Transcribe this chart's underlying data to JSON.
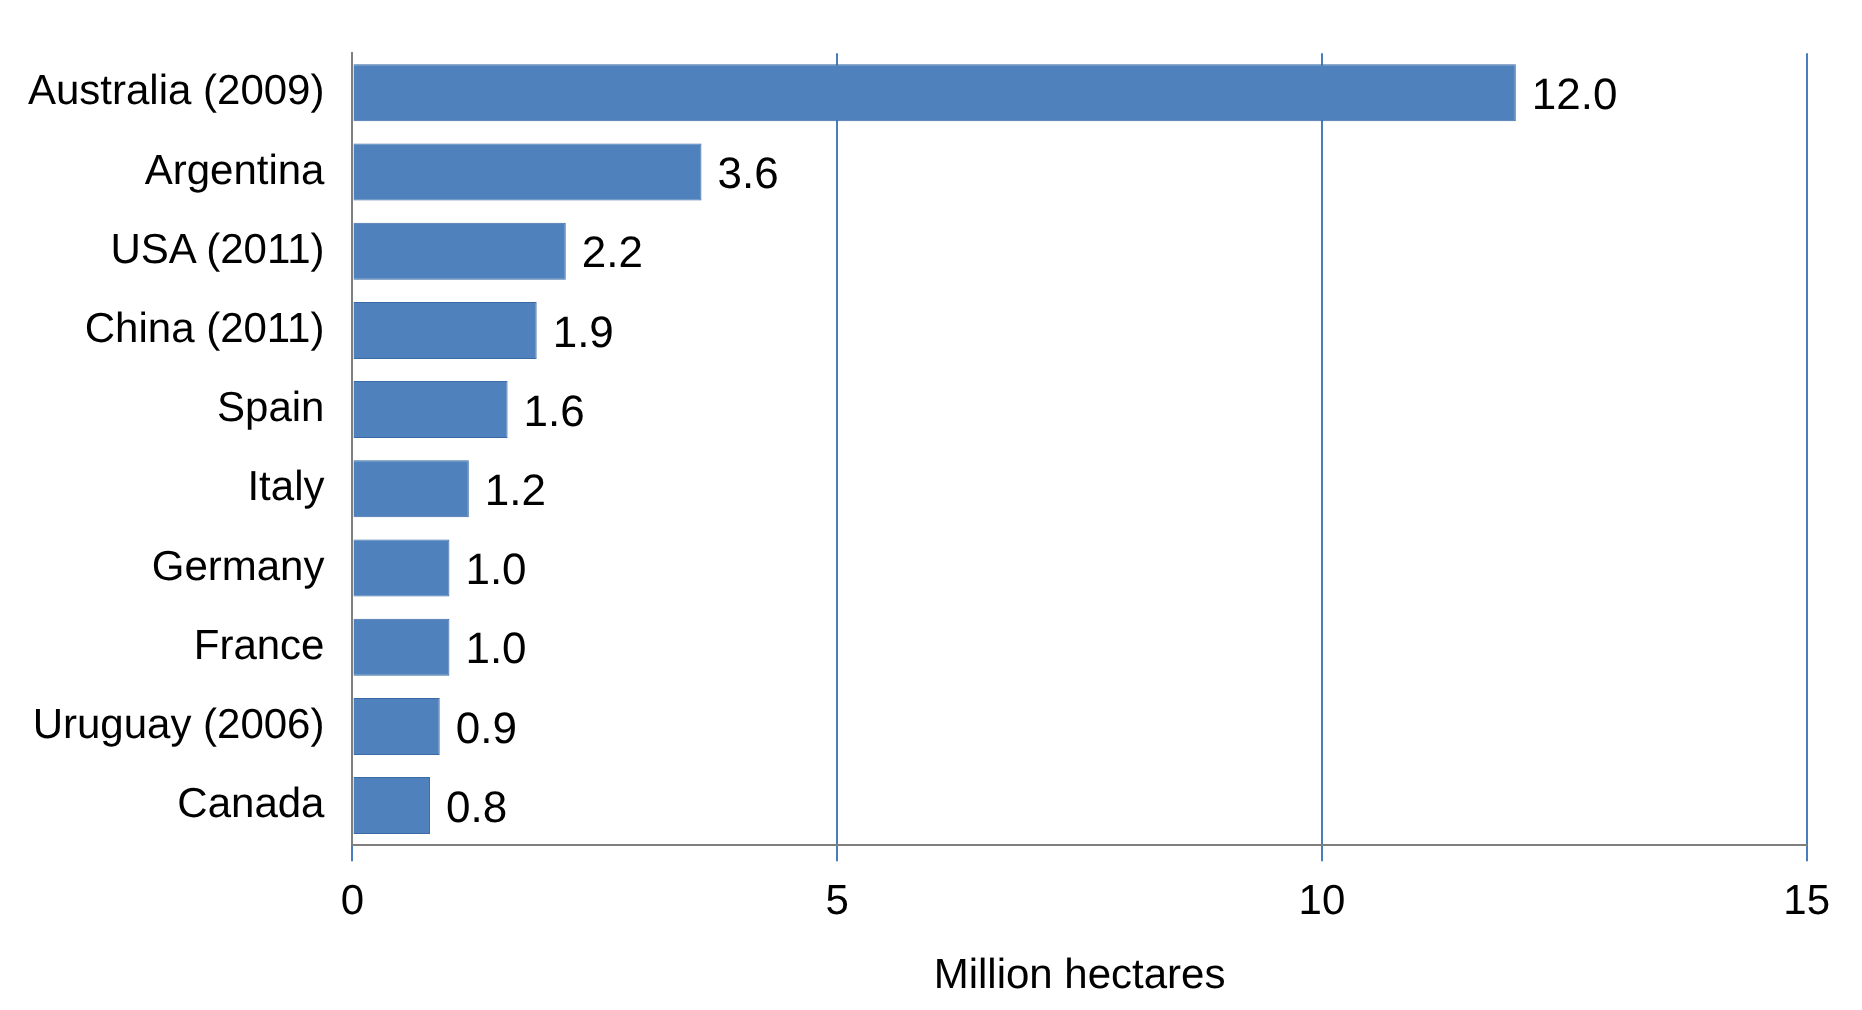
{
  "chart_data": {
    "type": "bar",
    "orientation": "horizontal",
    "xlabel": "Million hectares",
    "categories": [
      "Australia (2009)",
      "Argentina",
      "USA (2011)",
      "China (2011)",
      "Spain",
      "Italy",
      "Germany",
      "France",
      "Uruguay (2006)",
      "Canada"
    ],
    "values": [
      12.0,
      3.6,
      2.2,
      1.9,
      1.6,
      1.2,
      1.0,
      1.0,
      0.9,
      0.8
    ],
    "value_labels": [
      "12.0",
      "3.6",
      "2.2",
      "1.9",
      "1.6",
      "1.2",
      "1.0",
      "1.0",
      "0.9",
      "0.8"
    ],
    "color": "#4f81bd",
    "xlim": [
      0,
      15
    ],
    "xticks": [
      0,
      5,
      10,
      15
    ],
    "grid": "x"
  }
}
